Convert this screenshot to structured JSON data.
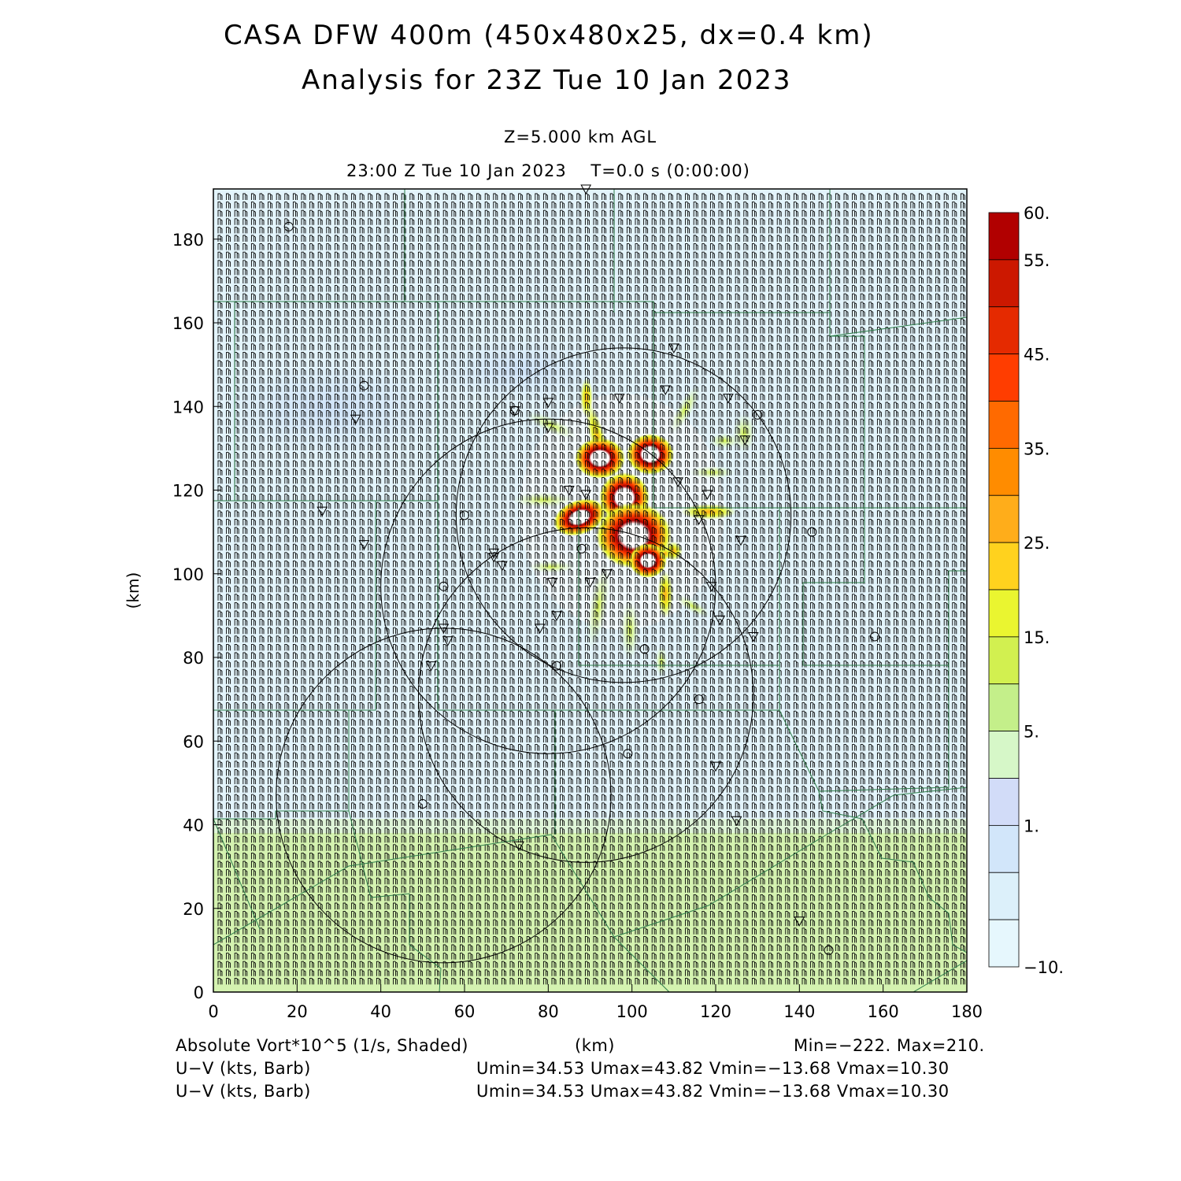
{
  "title_line1": "CASA DFW 400m (450x480x25, dx=0.4 km)",
  "title_line2": "Analysis for 23Z Tue 10 Jan 2023",
  "level_label": "Z=5.000 km AGL",
  "time_label": "23:00 Z Tue 10 Jan 2023    T=0.0 s (0:00:00)",
  "axes": {
    "x_unit": "(km)",
    "y_unit": "(km)",
    "x_ticks": [
      "0",
      "20",
      "40",
      "60",
      "80",
      "100",
      "120",
      "140",
      "160",
      "180"
    ],
    "y_ticks": [
      "0",
      "20",
      "40",
      "60",
      "80",
      "100",
      "120",
      "140",
      "160",
      "180"
    ],
    "x_range": [
      0,
      180
    ],
    "y_range": [
      0,
      192
    ]
  },
  "colorbar": {
    "labels": [
      "60.",
      "55.",
      "45.",
      "35.",
      "25.",
      "15.",
      "5.",
      "1.",
      "−10."
    ],
    "colors": [
      "#b10000",
      "#cc1800",
      "#e52a00",
      "#ff3d00",
      "#ff6a00",
      "#ff8c00",
      "#ffad1a",
      "#ffd21e",
      "#eaf530",
      "#d2f050",
      "#c4ef8a",
      "#d6f7c8",
      "#d2dcf8",
      "#d2e6fa",
      "#dcf0fa",
      "#e6f7fd"
    ]
  },
  "footer": {
    "field_label": "Absolute Vort*10^5 (1/s, Shaded)",
    "x_unit_label": "(km)",
    "minmax": "Min=−222. Max=210.",
    "barb1_label": "U−V (kts, Barb)",
    "barb1_stats": "Umin=34.53 Umax=43.82 Vmin=−13.68 Vmax=10.30",
    "barb2_label": "U−V (kts, Barb)",
    "barb2_stats": "Umin=34.53 Umax=43.82 Vmin=−13.68 Vmax=10.30"
  },
  "radar_rings_km": [
    {
      "cx": 98,
      "cy": 114,
      "r": 40
    },
    {
      "cx": 80,
      "cy": 97,
      "r": 40
    },
    {
      "cx": 89,
      "cy": 71,
      "r": 40
    },
    {
      "cx": 55,
      "cy": 47,
      "r": 40
    }
  ],
  "colors": {
    "background_field": "#e3f4fb",
    "southern_band": "#d4f2b0",
    "boundary_lines": "#2e7d4a"
  }
}
